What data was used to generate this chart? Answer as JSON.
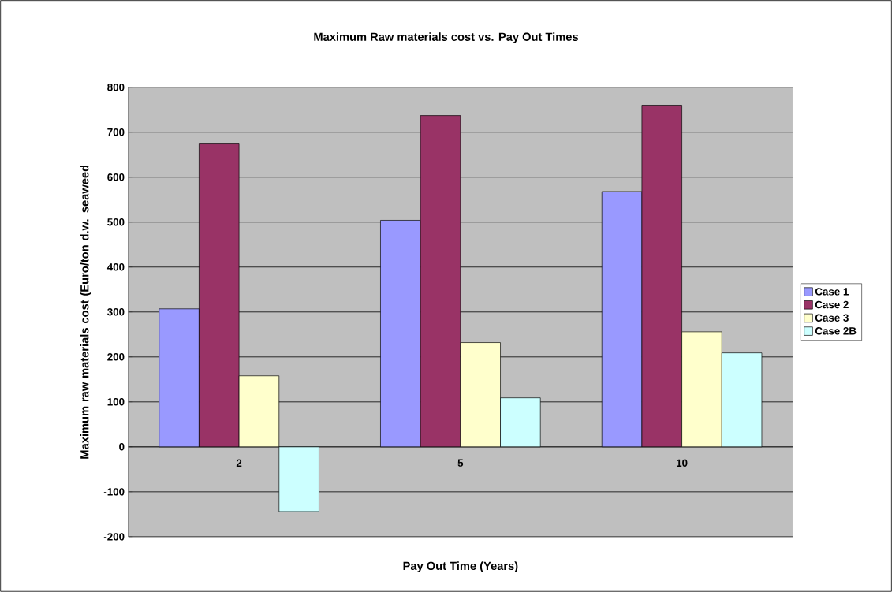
{
  "chart_data": {
    "type": "bar",
    "title": "Maximum Raw materials cost vs. Pay Out Times",
    "xlabel": "Pay Out Time (Years)",
    "ylabel": "Maximum raw materials cost (Euro/ton d.w. seaweed",
    "categories": [
      "2",
      "5",
      "10"
    ],
    "series": [
      {
        "name": "Case 1",
        "color": "#9999ff",
        "values": [
          307,
          504,
          568
        ]
      },
      {
        "name": "Case 2",
        "color": "#993366",
        "values": [
          674,
          737,
          760
        ]
      },
      {
        "name": "Case 3",
        "color": "#ffffcc",
        "values": [
          158,
          232,
          256
        ]
      },
      {
        "name": "Case 2B",
        "color": "#ccffff",
        "values": [
          -144,
          109,
          209
        ]
      }
    ],
    "ylim": [
      -200,
      800
    ],
    "yticks": [
      -200,
      -100,
      0,
      100,
      200,
      300,
      400,
      500,
      600,
      700,
      800
    ],
    "grid": "y",
    "legend": "right"
  }
}
